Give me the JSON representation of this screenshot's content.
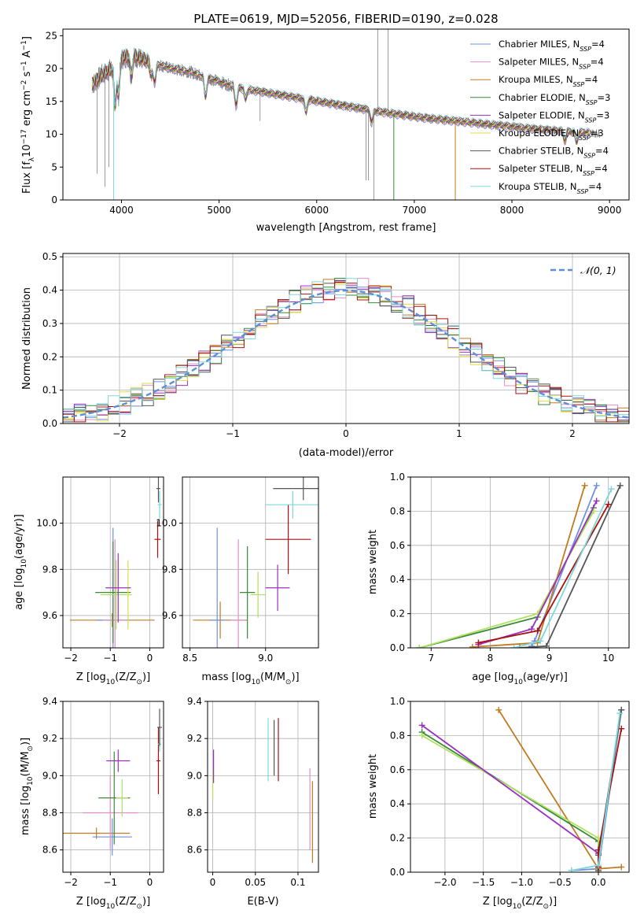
{
  "figure": {
    "title": "PLATE=0619, MJD=52056, FIBERID=0190, z=0.028",
    "colors": {
      "chabrier_miles": "#6f8fe0",
      "salpeter_miles": "#e090c8",
      "kroupa_miles": "#c07a20",
      "chabrier_elodie": "#3a8a3a",
      "salpeter_elodie": "#9b30c0",
      "kroupa_elodie": "#dede40",
      "chabrier_stelib": "#555555",
      "salpeter_stelib": "#aa1010",
      "kroupa_stelib": "#7ed8d8",
      "data": "#808080",
      "normal": "#5b8fd8",
      "mean_line": "#e07020",
      "light_green": "#b0e060"
    }
  },
  "chart_data": [
    {
      "id": "spectrum",
      "type": "line",
      "xlabel": "wavelength [Angstrom, rest frame]",
      "ylabel_parts": [
        "Flux [f",
        "λ",
        "10",
        "−17",
        " erg cm",
        "−2",
        " s",
        "−1",
        " A",
        "−1",
        "]"
      ],
      "xlim": [
        3400,
        9200
      ],
      "ylim": [
        0,
        26
      ],
      "xticks": [
        4000,
        5000,
        6000,
        7000,
        8000,
        9000
      ],
      "yticks": [
        0,
        5,
        10,
        15,
        20,
        25
      ],
      "grid": false,
      "legend_position": "top-right",
      "continuum": {
        "x": [
          3700,
          3800,
          3900,
          4000,
          4100,
          4200,
          4300,
          4500,
          4700,
          4900,
          5100,
          5300,
          5500,
          5700,
          5900,
          6100,
          6300,
          6500,
          6700,
          6900,
          7100,
          7300,
          7500,
          7700,
          7900,
          8100,
          8300,
          8500,
          8700,
          8900
        ],
        "y": [
          17.5,
          19.0,
          20.0,
          21.5,
          22.0,
          21.5,
          21.0,
          20.0,
          19.5,
          18.5,
          17.5,
          16.8,
          16.3,
          15.8,
          15.3,
          14.8,
          14.3,
          13.8,
          13.3,
          12.9,
          12.5,
          12.2,
          11.9,
          11.6,
          11.3,
          11.0,
          10.7,
          10.5,
          10.3,
          10.1
        ]
      },
      "model_spikes": [
        {
          "model": "kroupa_miles",
          "x": 7420,
          "y_min": 0
        },
        {
          "model": "chabrier_elodie",
          "x": 6790,
          "y_min": 0
        },
        {
          "model": "kroupa_stelib",
          "x": 3920,
          "y_min": 0
        }
      ],
      "series": [
        {
          "key": "chabrier_miles",
          "imf": "Chabrier",
          "lib": "MILES",
          "nssp": "4"
        },
        {
          "key": "salpeter_miles",
          "imf": "Salpeter",
          "lib": "MILES",
          "nssp": "4"
        },
        {
          "key": "kroupa_miles",
          "imf": "Kroupa",
          "lib": "MILES",
          "nssp": "4"
        },
        {
          "key": "chabrier_elodie",
          "imf": "Chabrier",
          "lib": "ELODIE",
          "nssp": "3"
        },
        {
          "key": "salpeter_elodie",
          "imf": "Salpeter",
          "lib": "ELODIE",
          "nssp": "3"
        },
        {
          "key": "kroupa_elodie",
          "imf": "Kroupa",
          "lib": "ELODIE",
          "nssp": "3"
        },
        {
          "key": "chabrier_stelib",
          "imf": "Chabrier",
          "lib": "STELIB",
          "nssp": "4"
        },
        {
          "key": "salpeter_stelib",
          "imf": "Salpeter",
          "lib": "STELIB",
          "nssp": "4"
        },
        {
          "key": "kroupa_stelib",
          "imf": "Kroupa",
          "lib": "STELIB",
          "nssp": "4"
        }
      ],
      "legend_nssp_label": "N",
      "legend_nssp_sub": "SSP"
    },
    {
      "id": "residuals",
      "type": "histogram",
      "xlabel": "(data-model)/error",
      "ylabel": "Normed distribution",
      "xlim": [
        -2.5,
        2.5
      ],
      "ylim": [
        0,
        0.51
      ],
      "xticks": [
        -2,
        -1,
        0,
        1,
        2
      ],
      "yticks": [
        0.0,
        0.1,
        0.2,
        0.3,
        0.4,
        0.5
      ],
      "grid": true,
      "legend_position": "top-right",
      "normal_label": "𝒩(0, 1)",
      "bin_width": 0.1
    },
    {
      "id": "age_vs_z",
      "type": "errorbar",
      "xlabel": "Z [log10(Z/Z⊙)]",
      "ylabel": "age  [log10(age/yr)]",
      "xlim": [
        -2.2,
        0.35
      ],
      "ylim": [
        9.46,
        10.2
      ],
      "xticks": [
        -2,
        -1,
        0
      ],
      "yticks": [
        9.6,
        9.8,
        10.0
      ],
      "grid": true,
      "points": [
        {
          "model": "kroupa_miles",
          "x": -0.95,
          "y": 9.58,
          "xerr": 1.07,
          "yerr": 0.03
        },
        {
          "model": "chabrier_miles",
          "x": -0.93,
          "y": 9.58,
          "xerr": 0.42,
          "yerr": 0.4
        },
        {
          "model": "salpeter_miles",
          "x": -0.88,
          "y": 9.58,
          "xerr": 0.3,
          "yerr": 0.35
        },
        {
          "model": "chabrier_elodie",
          "x": -0.93,
          "y": 9.7,
          "xerr": 0.45,
          "yerr": 0.22
        },
        {
          "model": "light_green",
          "x": -0.85,
          "y": 9.69,
          "xerr": 0.4,
          "yerr": 0.15
        },
        {
          "model": "kroupa_elodie",
          "x": -0.55,
          "y": 9.69,
          "xerr": 0.05,
          "yerr": 0.15
        },
        {
          "model": "salpeter_elodie",
          "x": -0.8,
          "y": 9.72,
          "xerr": 0.32,
          "yerr": 0.15
        },
        {
          "model": "salpeter_stelib",
          "x": 0.2,
          "y": 9.93,
          "xerr": 0.08,
          "yerr": 0.08
        },
        {
          "model": "chabrier_stelib",
          "x": 0.22,
          "y": 10.15,
          "xerr": 0.05,
          "yerr": 0.06
        },
        {
          "model": "kroupa_stelib",
          "x": 0.25,
          "y": 10.08,
          "xerr": 0.05,
          "yerr": 0.06
        }
      ]
    },
    {
      "id": "age_vs_mass",
      "type": "errorbar",
      "xlabel": "mass [log10(M/M⊙)]",
      "xlim": [
        8.45,
        9.35
      ],
      "ylim": [
        9.46,
        10.2
      ],
      "xticks": [
        8.5,
        9.0
      ],
      "yticks": [
        9.6,
        9.8,
        10.0
      ],
      "grid": true,
      "points": [
        {
          "model": "kroupa_miles",
          "x": 8.7,
          "y": 9.58,
          "xerr": 0.18,
          "yerr": 0.08
        },
        {
          "model": "chabrier_miles",
          "x": 8.68,
          "y": 9.58,
          "xerr": 0.05,
          "yerr": 0.4
        },
        {
          "model": "salpeter_miles",
          "x": 8.82,
          "y": 9.58,
          "xerr": 0.05,
          "yerr": 0.35
        },
        {
          "model": "chabrier_elodie",
          "x": 8.88,
          "y": 9.7,
          "xerr": 0.05,
          "yerr": 0.2
        },
        {
          "model": "light_green",
          "x": 8.95,
          "y": 9.69,
          "xerr": 0.05,
          "yerr": 0.1
        },
        {
          "model": "salpeter_elodie",
          "x": 9.08,
          "y": 9.72,
          "xerr": 0.08,
          "yerr": 0.1
        },
        {
          "model": "salpeter_stelib",
          "x": 9.15,
          "y": 9.93,
          "xerr": 0.15,
          "yerr": 0.15
        },
        {
          "model": "kroupa_stelib",
          "x": 9.18,
          "y": 10.08,
          "xerr": 0.18,
          "yerr": 0.06
        },
        {
          "model": "chabrier_stelib",
          "x": 9.25,
          "y": 10.15,
          "xerr": 0.2,
          "yerr": 0.05
        }
      ]
    },
    {
      "id": "massweight_vs_age",
      "type": "line",
      "xlabel": "age  [log10(age/yr)]",
      "ylabel": "mass weight",
      "xlim": [
        6.65,
        10.35
      ],
      "ylim": [
        0,
        1.0
      ],
      "xticks": [
        7,
        8,
        9,
        10
      ],
      "yticks": [
        0.0,
        0.2,
        0.4,
        0.6,
        0.8,
        1.0
      ],
      "grid": true,
      "series": [
        {
          "model": "chabrier_miles",
          "x": [
            8.7,
            8.75,
            9.8
          ],
          "y": [
            0.01,
            0.04,
            0.95
          ]
        },
        {
          "model": "kroupa_miles",
          "x": [
            7.7,
            8.8,
            9.6
          ],
          "y": [
            0.005,
            0.03,
            0.95
          ]
        },
        {
          "model": "chabrier_elodie",
          "x": [
            6.8,
            8.8,
            9.75
          ],
          "y": [
            0.0,
            0.18,
            0.82
          ]
        },
        {
          "model": "light_green",
          "x": [
            6.8,
            8.8,
            9.75
          ],
          "y": [
            0.0,
            0.2,
            0.8
          ]
        },
        {
          "model": "salpeter_elodie",
          "x": [
            7.8,
            8.7,
            9.8
          ],
          "y": [
            0.02,
            0.11,
            0.86
          ]
        },
        {
          "model": "chabrier_stelib",
          "x": [
            8.5,
            8.95,
            10.2
          ],
          "y": [
            0.0,
            0.01,
            0.95
          ]
        },
        {
          "model": "salpeter_stelib",
          "x": [
            7.8,
            8.8,
            10.0
          ],
          "y": [
            0.03,
            0.1,
            0.84
          ]
        },
        {
          "model": "kroupa_stelib",
          "x": [
            8.4,
            8.85,
            10.05
          ],
          "y": [
            0.0,
            0.04,
            0.93
          ]
        }
      ]
    },
    {
      "id": "mass_vs_z",
      "type": "errorbar",
      "xlabel": "Z [log10(Z/Z⊙)]",
      "ylabel": "mass [log10(M/M⊙)]",
      "xlim": [
        -2.2,
        0.35
      ],
      "ylim": [
        8.48,
        9.4
      ],
      "xticks": [
        -2,
        -1,
        0
      ],
      "yticks": [
        8.6,
        8.8,
        9.0,
        9.2,
        9.4
      ],
      "grid": true,
      "points": [
        {
          "model": "kroupa_miles",
          "x": -1.35,
          "y": 8.69,
          "xerr": 0.85,
          "yerr": 0.03
        },
        {
          "model": "chabrier_miles",
          "x": -0.95,
          "y": 8.67,
          "xerr": 0.5,
          "yerr": 0.1
        },
        {
          "model": "salpeter_miles",
          "x": -1.0,
          "y": 8.8,
          "xerr": 0.7,
          "yerr": 0.2
        },
        {
          "model": "chabrier_elodie",
          "x": -0.9,
          "y": 8.88,
          "xerr": 0.4,
          "yerr": 0.25
        },
        {
          "model": "light_green",
          "x": -0.7,
          "y": 8.88,
          "xerr": 0.15,
          "yerr": 0.1
        },
        {
          "model": "salpeter_elodie",
          "x": -0.8,
          "y": 9.08,
          "xerr": 0.3,
          "yerr": 0.06
        },
        {
          "model": "salpeter_stelib",
          "x": 0.22,
          "y": 9.08,
          "xerr": 0.05,
          "yerr": 0.18
        },
        {
          "model": "kroupa_stelib",
          "x": 0.25,
          "y": 9.17,
          "xerr": 0.04,
          "yerr": 0.04
        },
        {
          "model": "chabrier_stelib",
          "x": 0.25,
          "y": 9.26,
          "xerr": 0.06,
          "yerr": 0.1
        }
      ]
    },
    {
      "id": "mass_vs_ebv",
      "type": "errorbar",
      "xlabel": "E(B-V)",
      "xlim": [
        -0.006,
        0.124
      ],
      "ylim": [
        8.48,
        9.4
      ],
      "xticks": [
        0.0,
        0.05,
        0.1
      ],
      "yticks": [
        8.6,
        8.8,
        9.0,
        9.2,
        9.4
      ],
      "grid": true,
      "points": [
        {
          "model": "light_green",
          "x": 0.0,
          "y": 8.95,
          "xerr": 0,
          "yerr": 0.08
        },
        {
          "model": "salpeter_elodie",
          "x": 0.001,
          "y": 9.05,
          "xerr": 0,
          "yerr": 0.09
        },
        {
          "model": "kroupa_stelib",
          "x": 0.065,
          "y": 9.14,
          "xerr": 0,
          "yerr": 0.17
        },
        {
          "model": "chabrier_stelib",
          "x": 0.072,
          "y": 9.15,
          "xerr": 0,
          "yerr": 0.15
        },
        {
          "model": "salpeter_stelib",
          "x": 0.077,
          "y": 9.14,
          "xerr": 0,
          "yerr": 0.17
        },
        {
          "model": "salpeter_miles",
          "x": 0.114,
          "y": 8.82,
          "xerr": 0,
          "yerr": 0.22
        },
        {
          "model": "kroupa_miles",
          "x": 0.117,
          "y": 8.75,
          "xerr": 0,
          "yerr": 0.22
        }
      ]
    },
    {
      "id": "massweight_vs_z",
      "type": "line",
      "xlabel": "Z [log10(Z/Z⊙)]",
      "ylabel": "mass weight",
      "xlim": [
        -2.45,
        0.4
      ],
      "ylim": [
        0,
        1.0
      ],
      "xticks": [
        -2.0,
        -1.5,
        -1.0,
        -0.5,
        0.0
      ],
      "yticks": [
        0.0,
        0.2,
        0.4,
        0.6,
        0.8,
        1.0
      ],
      "grid": true,
      "series": [
        {
          "model": "chabrier_miles",
          "x": [
            -0.35,
            0.0,
            0.3
          ],
          "y": [
            0.01,
            0.02,
            0.95
          ]
        },
        {
          "model": "kroupa_miles",
          "x": [
            -1.3,
            0.0,
            0.3
          ],
          "y": [
            0.95,
            0.02,
            0.03
          ]
        },
        {
          "model": "chabrier_elodie",
          "x": [
            -2.3,
            0.0,
            0.0
          ],
          "y": [
            0.82,
            0.18,
            0.0
          ]
        },
        {
          "model": "light_green",
          "x": [
            -2.3,
            0.0,
            0.0
          ],
          "y": [
            0.8,
            0.2,
            0.0
          ]
        },
        {
          "model": "salpeter_elodie",
          "x": [
            -2.3,
            0.0,
            0.0
          ],
          "y": [
            0.86,
            0.11,
            0.03
          ]
        },
        {
          "model": "chabrier_stelib",
          "x": [
            0.0,
            0.0,
            0.3
          ],
          "y": [
            0.01,
            0.1,
            0.95
          ]
        },
        {
          "model": "salpeter_stelib",
          "x": [
            0.0,
            0.0,
            0.3
          ],
          "y": [
            0.03,
            0.13,
            0.84
          ]
        },
        {
          "model": "kroupa_stelib",
          "x": [
            -0.35,
            0.0,
            0.28
          ],
          "y": [
            0.01,
            0.04,
            0.93
          ]
        }
      ]
    }
  ]
}
